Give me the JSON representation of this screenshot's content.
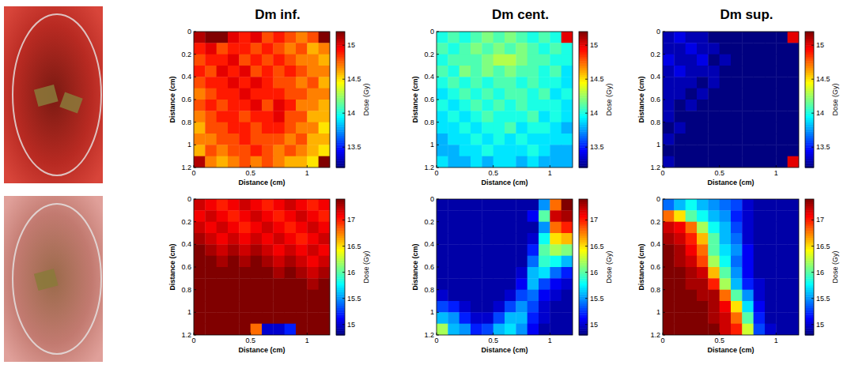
{
  "chart_data": [
    {
      "type": "heatmap",
      "title": "Dm inf.",
      "x_label": "Distance (cm)",
      "y_label": "Distance (cm)",
      "xlim": [
        0,
        1.2
      ],
      "ylim": [
        0,
        1.2
      ],
      "xticks": [
        0,
        0.5,
        1
      ],
      "yticks": [
        0,
        0.2,
        0.4,
        0.6,
        0.8,
        1,
        1.2
      ],
      "color_range": [
        13.2,
        15.2
      ],
      "color_ticks": [
        13.5,
        14,
        14.5,
        15
      ],
      "color_label": "Dose (Gy)",
      "cells": [
        [
          15.1,
          15.2,
          15.2,
          15.0,
          14.9,
          15.0,
          14.8,
          14.9,
          14.8,
          14.7,
          14.8,
          15.2
        ],
        [
          14.9,
          15.0,
          14.8,
          14.9,
          14.9,
          14.8,
          14.9,
          14.8,
          14.7,
          14.8,
          14.6,
          14.7
        ],
        [
          14.8,
          14.9,
          14.9,
          15.0,
          14.8,
          14.9,
          14.8,
          14.9,
          14.8,
          14.7,
          14.7,
          14.6
        ],
        [
          14.9,
          14.8,
          15.0,
          14.9,
          15.0,
          14.8,
          14.9,
          14.8,
          14.9,
          14.8,
          14.7,
          14.7
        ],
        [
          14.8,
          14.9,
          14.9,
          15.0,
          14.9,
          15.0,
          14.9,
          14.8,
          14.8,
          14.7,
          14.8,
          14.6
        ],
        [
          14.7,
          14.8,
          14.9,
          14.9,
          15.0,
          14.9,
          14.9,
          14.9,
          14.8,
          14.8,
          14.7,
          14.7
        ],
        [
          14.8,
          14.9,
          14.8,
          14.9,
          14.9,
          15.0,
          14.8,
          15.0,
          14.9,
          14.7,
          14.7,
          14.6
        ],
        [
          14.7,
          14.8,
          14.9,
          14.9,
          14.8,
          14.9,
          14.9,
          15.0,
          14.8,
          14.8,
          14.6,
          14.6
        ],
        [
          14.6,
          14.8,
          14.8,
          14.9,
          14.9,
          14.8,
          14.9,
          14.9,
          14.8,
          14.7,
          14.7,
          14.5
        ],
        [
          14.7,
          14.7,
          14.8,
          14.8,
          14.9,
          14.8,
          14.8,
          14.8,
          14.7,
          14.8,
          14.6,
          14.6
        ],
        [
          14.6,
          14.8,
          14.7,
          14.8,
          14.8,
          14.9,
          14.8,
          14.7,
          14.8,
          14.7,
          14.6,
          14.5
        ],
        [
          15.1,
          14.7,
          14.6,
          14.7,
          14.8,
          14.7,
          14.8,
          14.7,
          14.6,
          14.6,
          14.5,
          15.2
        ]
      ]
    },
    {
      "type": "heatmap",
      "title": "Dm cent.",
      "x_label": "Distance (cm)",
      "y_label": "Distance (cm)",
      "xlim": [
        0,
        1.2
      ],
      "ylim": [
        0,
        1.2
      ],
      "xticks": [
        0,
        0.5,
        1
      ],
      "yticks": [
        0,
        0.2,
        0.4,
        0.6,
        0.8,
        1,
        1.2
      ],
      "color_range": [
        13.2,
        15.2
      ],
      "color_ticks": [
        13.5,
        14,
        14.5,
        15
      ],
      "color_label": "Dose (Gy)",
      "cells": [
        [
          14.0,
          14.1,
          14.0,
          14.1,
          14.2,
          14.1,
          14.2,
          14.1,
          14.0,
          14.1,
          14.0,
          15.0
        ],
        [
          14.1,
          14.0,
          14.1,
          14.2,
          14.1,
          14.2,
          14.1,
          14.2,
          14.1,
          14.0,
          14.1,
          14.0
        ],
        [
          14.0,
          14.1,
          14.1,
          14.1,
          14.2,
          14.3,
          14.3,
          14.2,
          14.1,
          14.1,
          14.0,
          14.0
        ],
        [
          14.1,
          14.0,
          14.2,
          14.1,
          14.2,
          14.1,
          14.2,
          14.1,
          14.1,
          14.0,
          14.1,
          13.9
        ],
        [
          14.0,
          14.1,
          14.0,
          14.1,
          14.0,
          14.1,
          14.1,
          14.0,
          14.1,
          14.0,
          14.0,
          13.9
        ],
        [
          13.9,
          14.0,
          14.1,
          14.0,
          14.1,
          14.0,
          14.1,
          14.1,
          14.0,
          14.1,
          13.9,
          14.0
        ],
        [
          14.0,
          13.9,
          14.0,
          14.1,
          14.0,
          14.1,
          14.0,
          14.1,
          14.0,
          14.0,
          14.0,
          13.9
        ],
        [
          13.9,
          14.0,
          13.9,
          14.0,
          14.1,
          14.0,
          14.0,
          14.0,
          14.1,
          13.9,
          14.0,
          13.9
        ],
        [
          13.9,
          13.9,
          14.0,
          13.9,
          14.0,
          14.0,
          14.1,
          13.9,
          14.0,
          14.0,
          13.9,
          13.8
        ],
        [
          13.8,
          13.9,
          13.9,
          14.0,
          13.9,
          14.0,
          13.9,
          14.0,
          13.9,
          13.9,
          13.9,
          13.9
        ],
        [
          13.8,
          13.8,
          13.9,
          13.9,
          14.0,
          13.9,
          13.9,
          13.9,
          14.0,
          13.9,
          13.8,
          13.8
        ],
        [
          13.9,
          13.8,
          13.8,
          13.9,
          13.8,
          13.9,
          13.9,
          13.8,
          13.9,
          13.8,
          13.8,
          13.8
        ]
      ]
    },
    {
      "type": "heatmap",
      "title": "Dm sup.",
      "x_label": "Distance (cm)",
      "y_label": "Distance (cm)",
      "xlim": [
        0,
        1.2
      ],
      "ylim": [
        0,
        1.2
      ],
      "xticks": [
        0,
        0.5,
        1
      ],
      "yticks": [
        0,
        0.2,
        0.4,
        0.6,
        0.8,
        1,
        1.2
      ],
      "color_range": [
        13.2,
        15.2
      ],
      "color_ticks": [
        13.5,
        14,
        14.5,
        15
      ],
      "color_label": "Dose (Gy)",
      "cells": [
        [
          13.3,
          13.4,
          13.3,
          13.3,
          13.2,
          13.2,
          13.2,
          13.2,
          13.2,
          13.2,
          13.2,
          15.0
        ],
        [
          13.3,
          13.3,
          13.4,
          13.3,
          13.3,
          13.2,
          13.2,
          13.2,
          13.2,
          13.2,
          13.2,
          13.2
        ],
        [
          13.4,
          13.3,
          13.3,
          13.4,
          13.2,
          13.3,
          13.2,
          13.2,
          13.2,
          13.2,
          13.2,
          13.2
        ],
        [
          13.3,
          13.4,
          13.3,
          13.3,
          13.3,
          13.2,
          13.2,
          13.2,
          13.2,
          13.2,
          13.2,
          13.2
        ],
        [
          13.3,
          13.3,
          13.3,
          13.2,
          13.3,
          13.2,
          13.2,
          13.2,
          13.2,
          13.2,
          13.2,
          13.2
        ],
        [
          13.3,
          13.3,
          13.2,
          13.3,
          13.2,
          13.2,
          13.2,
          13.2,
          13.2,
          13.2,
          13.2,
          13.2
        ],
        [
          13.3,
          13.2,
          13.3,
          13.2,
          13.2,
          13.2,
          13.2,
          13.2,
          13.2,
          13.2,
          13.2,
          13.2
        ],
        [
          13.3,
          13.2,
          13.2,
          13.2,
          13.2,
          13.2,
          13.2,
          13.2,
          13.2,
          13.2,
          13.2,
          13.2
        ],
        [
          13.2,
          13.3,
          13.2,
          13.2,
          13.2,
          13.2,
          13.2,
          13.2,
          13.2,
          13.2,
          13.2,
          13.2
        ],
        [
          13.3,
          13.2,
          13.2,
          13.2,
          13.2,
          13.2,
          13.2,
          13.2,
          13.2,
          13.2,
          13.2,
          13.2
        ],
        [
          13.2,
          13.2,
          13.2,
          13.2,
          13.2,
          13.2,
          13.2,
          13.2,
          13.2,
          13.2,
          13.2,
          13.2
        ],
        [
          13.3,
          13.2,
          13.2,
          13.2,
          13.2,
          13.2,
          13.2,
          13.2,
          13.2,
          13.2,
          13.2,
          15.0
        ]
      ]
    },
    {
      "type": "heatmap",
      "x_label": "Distance (cm)",
      "y_label": "Distance (cm)",
      "xlim": [
        0,
        1.2
      ],
      "ylim": [
        0,
        1.2
      ],
      "xticks": [
        0,
        0.5,
        1
      ],
      "yticks": [
        0,
        0.2,
        0.4,
        0.6,
        0.8,
        1,
        1.2
      ],
      "color_range": [
        14.8,
        17.4
      ],
      "color_ticks": [
        15,
        15.5,
        16,
        16.5,
        17
      ],
      "color_label": "Dose (Gy)",
      "cells": [
        [
          17.2,
          17.1,
          17.0,
          17.1,
          17.2,
          17.1,
          17.0,
          17.1,
          17.2,
          17.1,
          17.0,
          17.1
        ],
        [
          17.1,
          17.2,
          17.1,
          17.0,
          17.1,
          17.2,
          17.1,
          17.0,
          17.1,
          17.2,
          17.1,
          17.0
        ],
        [
          17.2,
          17.1,
          17.2,
          17.1,
          17.0,
          17.1,
          17.2,
          17.1,
          17.0,
          17.1,
          17.2,
          17.1
        ],
        [
          17.3,
          17.2,
          17.1,
          17.2,
          17.1,
          17.2,
          17.1,
          17.2,
          17.1,
          17.0,
          17.1,
          17.2
        ],
        [
          17.4,
          17.3,
          17.2,
          17.3,
          17.2,
          17.3,
          17.2,
          17.1,
          17.2,
          17.1,
          17.2,
          17.1
        ],
        [
          17.4,
          17.4,
          17.3,
          17.4,
          17.3,
          17.4,
          17.3,
          17.2,
          17.3,
          17.2,
          17.1,
          17.2
        ],
        [
          17.4,
          17.4,
          17.4,
          17.4,
          17.4,
          17.4,
          17.4,
          17.3,
          17.4,
          17.3,
          17.2,
          17.3
        ],
        [
          17.4,
          17.4,
          17.4,
          17.4,
          17.4,
          17.4,
          17.4,
          17.4,
          17.4,
          17.4,
          17.3,
          17.4
        ],
        [
          17.4,
          17.4,
          17.4,
          17.4,
          17.4,
          17.4,
          17.4,
          17.4,
          17.4,
          17.4,
          17.4,
          17.4
        ],
        [
          17.4,
          17.4,
          17.4,
          17.4,
          17.4,
          17.4,
          17.4,
          17.4,
          17.4,
          17.4,
          17.4,
          17.4
        ],
        [
          17.4,
          17.4,
          17.4,
          17.4,
          17.4,
          17.4,
          17.4,
          17.4,
          17.4,
          17.4,
          17.4,
          17.4
        ],
        [
          17.4,
          17.4,
          17.4,
          17.4,
          17.4,
          16.8,
          15.0,
          15.0,
          15.2,
          17.4,
          17.4,
          17.4
        ]
      ]
    },
    {
      "type": "heatmap",
      "x_label": "Distance (cm)",
      "y_label": "Distance (cm)",
      "xlim": [
        0,
        1.2
      ],
      "ylim": [
        0,
        1.2
      ],
      "xticks": [
        0,
        0.5,
        1
      ],
      "yticks": [
        0,
        0.2,
        0.4,
        0.6,
        0.8,
        1,
        1.2
      ],
      "color_range": [
        14.8,
        17.4
      ],
      "color_ticks": [
        15,
        15.5,
        16,
        16.5,
        17
      ],
      "color_label": "Dose (Gy)",
      "cells": [
        [
          14.9,
          14.9,
          14.9,
          14.9,
          14.9,
          14.9,
          14.9,
          14.9,
          14.9,
          15.5,
          16.8,
          17.4
        ],
        [
          14.9,
          14.9,
          14.9,
          14.9,
          14.9,
          14.9,
          14.9,
          14.9,
          15.1,
          16.0,
          17.2,
          17.3
        ],
        [
          14.9,
          14.9,
          14.9,
          14.9,
          14.9,
          14.9,
          14.9,
          14.9,
          14.9,
          15.5,
          16.8,
          17.0
        ],
        [
          14.9,
          14.9,
          14.9,
          14.9,
          14.9,
          14.9,
          14.9,
          14.9,
          15.0,
          15.8,
          16.5,
          16.6
        ],
        [
          14.9,
          14.9,
          14.9,
          14.9,
          14.9,
          14.9,
          14.9,
          14.9,
          15.2,
          16.0,
          16.2,
          16.1
        ],
        [
          14.9,
          14.9,
          14.9,
          14.9,
          14.9,
          14.9,
          14.9,
          14.9,
          15.4,
          15.9,
          15.8,
          15.6
        ],
        [
          14.9,
          14.9,
          14.9,
          14.9,
          14.9,
          14.9,
          14.9,
          15.0,
          15.6,
          15.7,
          15.4,
          15.2
        ],
        [
          14.9,
          14.9,
          14.9,
          14.9,
          14.9,
          14.9,
          14.9,
          15.1,
          15.6,
          15.3,
          15.1,
          15.0
        ],
        [
          15.0,
          14.9,
          14.9,
          14.9,
          14.9,
          14.9,
          15.0,
          15.3,
          15.4,
          15.1,
          15.0,
          14.9
        ],
        [
          15.3,
          15.2,
          15.0,
          14.9,
          14.9,
          15.0,
          15.3,
          15.5,
          15.3,
          15.0,
          14.9,
          14.9
        ],
        [
          15.6,
          15.5,
          15.2,
          15.0,
          15.0,
          15.3,
          15.6,
          15.6,
          15.2,
          15.0,
          14.9,
          14.9
        ],
        [
          16.2,
          15.6,
          15.5,
          15.2,
          15.3,
          15.6,
          15.7,
          15.5,
          15.1,
          14.9,
          14.9,
          14.9
        ]
      ]
    },
    {
      "type": "heatmap",
      "x_label": "Distance (cm)",
      "y_label": "Distance (cm)",
      "xlim": [
        0,
        1.2
      ],
      "ylim": [
        0,
        1.2
      ],
      "xticks": [
        0,
        0.5,
        1
      ],
      "yticks": [
        0,
        0.2,
        0.4,
        0.6,
        0.8,
        1,
        1.2
      ],
      "color_range": [
        14.8,
        17.4
      ],
      "color_ticks": [
        15,
        15.5,
        16,
        16.5,
        17
      ],
      "color_label": "Dose (Gy)",
      "cells": [
        [
          15.4,
          15.6,
          15.8,
          15.6,
          15.5,
          15.4,
          15.3,
          15.0,
          14.9,
          14.9,
          14.9,
          14.9
        ],
        [
          16.8,
          16.5,
          16.0,
          15.8,
          15.6,
          15.5,
          15.2,
          15.0,
          14.9,
          14.9,
          14.9,
          14.9
        ],
        [
          17.2,
          17.1,
          16.8,
          16.2,
          15.8,
          15.6,
          15.3,
          15.0,
          14.9,
          14.9,
          14.9,
          14.9
        ],
        [
          17.3,
          17.2,
          17.0,
          16.6,
          16.0,
          15.6,
          15.4,
          15.0,
          14.9,
          14.9,
          14.9,
          14.9
        ],
        [
          17.4,
          17.3,
          17.1,
          16.8,
          16.0,
          15.7,
          15.5,
          15.1,
          14.9,
          14.9,
          14.9,
          14.9
        ],
        [
          17.4,
          17.3,
          17.2,
          16.9,
          16.2,
          15.8,
          15.4,
          15.1,
          14.9,
          14.9,
          14.9,
          14.9
        ],
        [
          17.4,
          17.4,
          17.3,
          17.2,
          16.6,
          16.0,
          15.5,
          15.1,
          14.9,
          14.9,
          14.9,
          14.9
        ],
        [
          17.4,
          17.4,
          17.3,
          17.3,
          17.0,
          16.2,
          15.6,
          15.2,
          15.0,
          14.9,
          14.9,
          14.9
        ],
        [
          17.4,
          17.4,
          17.4,
          17.3,
          17.3,
          16.8,
          16.0,
          15.5,
          15.0,
          14.9,
          14.9,
          14.9
        ],
        [
          17.4,
          17.4,
          17.4,
          17.4,
          17.3,
          17.1,
          16.5,
          15.7,
          15.1,
          14.9,
          14.9,
          14.9
        ],
        [
          17.4,
          17.4,
          17.4,
          17.4,
          17.3,
          17.2,
          16.8,
          16.0,
          15.2,
          14.9,
          14.9,
          14.9
        ],
        [
          17.4,
          17.4,
          17.4,
          17.4,
          17.4,
          17.2,
          17.0,
          16.3,
          15.3,
          15.0,
          14.9,
          14.9
        ]
      ]
    }
  ]
}
